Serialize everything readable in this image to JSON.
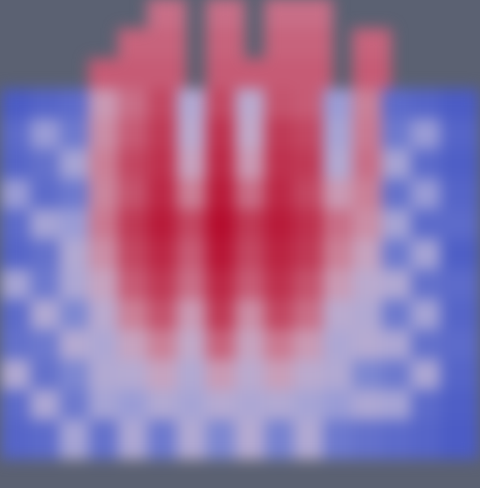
{
  "chart_data": {
    "type": "heatmap",
    "cells": [
      [
        null,
        null,
        null,
        null,
        null,
        75,
        null,
        75,
        null,
        75,
        75,
        null,
        null,
        null,
        null,
        null
      ],
      [
        null,
        null,
        null,
        null,
        78,
        78,
        null,
        78,
        null,
        78,
        78,
        null,
        78,
        null,
        null,
        null
      ],
      [
        null,
        null,
        null,
        80,
        80,
        80,
        null,
        80,
        80,
        80,
        80,
        null,
        80,
        null,
        null,
        null
      ],
      [
        5,
        8,
        10,
        60,
        75,
        85,
        40,
        85,
        45,
        82,
        80,
        30,
        70,
        10,
        8,
        5
      ],
      [
        10,
        30,
        15,
        65,
        80,
        88,
        45,
        90,
        50,
        88,
        85,
        35,
        72,
        15,
        30,
        8
      ],
      [
        8,
        12,
        35,
        70,
        85,
        90,
        55,
        92,
        60,
        90,
        88,
        40,
        75,
        35,
        10,
        6
      ],
      [
        30,
        10,
        15,
        68,
        82,
        92,
        70,
        95,
        75,
        92,
        85,
        60,
        70,
        12,
        30,
        8
      ],
      [
        10,
        35,
        30,
        72,
        88,
        95,
        85,
        98,
        88,
        95,
        90,
        75,
        65,
        35,
        10,
        10
      ],
      [
        8,
        12,
        40,
        65,
        85,
        92,
        80,
        96,
        85,
        93,
        88,
        70,
        55,
        15,
        35,
        6
      ],
      [
        35,
        15,
        38,
        55,
        80,
        88,
        75,
        92,
        80,
        90,
        82,
        60,
        45,
        40,
        12,
        10
      ],
      [
        10,
        40,
        20,
        45,
        70,
        82,
        60,
        88,
        65,
        85,
        75,
        45,
        40,
        15,
        35,
        8
      ],
      [
        12,
        15,
        42,
        38,
        55,
        70,
        50,
        78,
        55,
        72,
        60,
        38,
        42,
        38,
        12,
        10
      ],
      [
        40,
        12,
        20,
        40,
        42,
        55,
        40,
        60,
        45,
        58,
        45,
        40,
        20,
        15,
        38,
        8
      ],
      [
        10,
        38,
        15,
        35,
        30,
        40,
        35,
        42,
        38,
        40,
        35,
        30,
        38,
        35,
        10,
        6
      ],
      [
        8,
        10,
        35,
        12,
        38,
        15,
        40,
        20,
        42,
        18,
        40,
        15,
        12,
        10,
        8,
        5
      ],
      [
        null,
        null,
        null,
        null,
        null,
        null,
        null,
        null,
        null,
        null,
        null,
        null,
        null,
        null,
        null,
        null
      ]
    ],
    "zlim": [
      0,
      100
    ],
    "colors": [
      "#3b4cc0",
      "#e6e9f2",
      "#b40426"
    ],
    "tick_labels": false
  }
}
